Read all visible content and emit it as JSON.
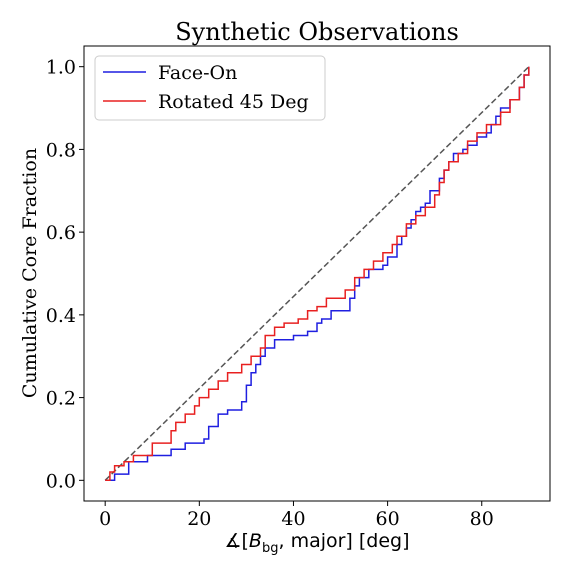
{
  "chart_data": {
    "type": "line",
    "title": "Synthetic Observations",
    "xlabel_parts": {
      "angle_symbol": "∡",
      "open": "[",
      "field": "B",
      "subscript": "bg",
      "rest": ", major] [deg]"
    },
    "ylabel": "Cumulative Core Fraction",
    "xlim": [
      -4.5,
      94.5
    ],
    "ylim": [
      -0.05,
      1.05
    ],
    "x_ticks": [
      0,
      20,
      40,
      60,
      80
    ],
    "x_tick_labels": [
      "0",
      "20",
      "40",
      "60",
      "80"
    ],
    "y_ticks": [
      0.0,
      0.2,
      0.4,
      0.6,
      0.8,
      1.0
    ],
    "y_tick_labels": [
      "0.0",
      "0.2",
      "0.4",
      "0.6",
      "0.8",
      "1.0"
    ],
    "grid": false,
    "legend_position": "upper-left",
    "reference_line": {
      "name": "uniform",
      "color": "#555555",
      "dash": true,
      "x": [
        0,
        90
      ],
      "y": [
        0,
        1
      ]
    },
    "series": [
      {
        "name": "Face-On",
        "color": "#1f1fe0",
        "step": true,
        "x": [
          0,
          2,
          5,
          9,
          14,
          17,
          21,
          22,
          24,
          26,
          29,
          30,
          31,
          32,
          33,
          34,
          36,
          40,
          43,
          45,
          46,
          48,
          52,
          53,
          54,
          56,
          59,
          60,
          62,
          63,
          64,
          65,
          66,
          67,
          68,
          69,
          71,
          72,
          73,
          74,
          76,
          77,
          79,
          81,
          82,
          83,
          84,
          86,
          88,
          89,
          90
        ],
        "y": [
          0.0,
          0.015,
          0.045,
          0.06,
          0.075,
          0.09,
          0.1,
          0.13,
          0.16,
          0.17,
          0.19,
          0.23,
          0.26,
          0.28,
          0.3,
          0.32,
          0.34,
          0.35,
          0.36,
          0.38,
          0.39,
          0.41,
          0.44,
          0.47,
          0.49,
          0.51,
          0.52,
          0.54,
          0.57,
          0.59,
          0.61,
          0.63,
          0.65,
          0.66,
          0.67,
          0.7,
          0.73,
          0.75,
          0.77,
          0.79,
          0.8,
          0.81,
          0.83,
          0.84,
          0.86,
          0.88,
          0.9,
          0.92,
          0.95,
          0.98,
          1.0
        ]
      },
      {
        "name": "Rotated 45 Deg",
        "color": "#e82020",
        "step": true,
        "x": [
          0,
          1,
          2,
          4,
          6,
          10,
          14,
          15,
          17,
          19,
          20,
          22,
          24,
          26,
          29,
          31,
          33,
          34,
          36,
          38,
          41,
          43,
          45,
          47,
          51,
          53,
          55,
          57,
          59,
          61,
          62,
          64,
          66,
          68,
          70,
          71,
          72,
          73,
          75,
          77,
          79,
          81,
          84,
          86,
          88,
          89,
          90
        ],
        "y": [
          0.0,
          0.02,
          0.035,
          0.045,
          0.06,
          0.09,
          0.12,
          0.14,
          0.16,
          0.18,
          0.2,
          0.22,
          0.24,
          0.26,
          0.28,
          0.3,
          0.32,
          0.35,
          0.37,
          0.38,
          0.39,
          0.41,
          0.42,
          0.44,
          0.46,
          0.49,
          0.51,
          0.53,
          0.55,
          0.57,
          0.59,
          0.62,
          0.64,
          0.66,
          0.69,
          0.72,
          0.75,
          0.77,
          0.79,
          0.82,
          0.84,
          0.86,
          0.89,
          0.92,
          0.95,
          0.98,
          1.0
        ]
      }
    ]
  }
}
